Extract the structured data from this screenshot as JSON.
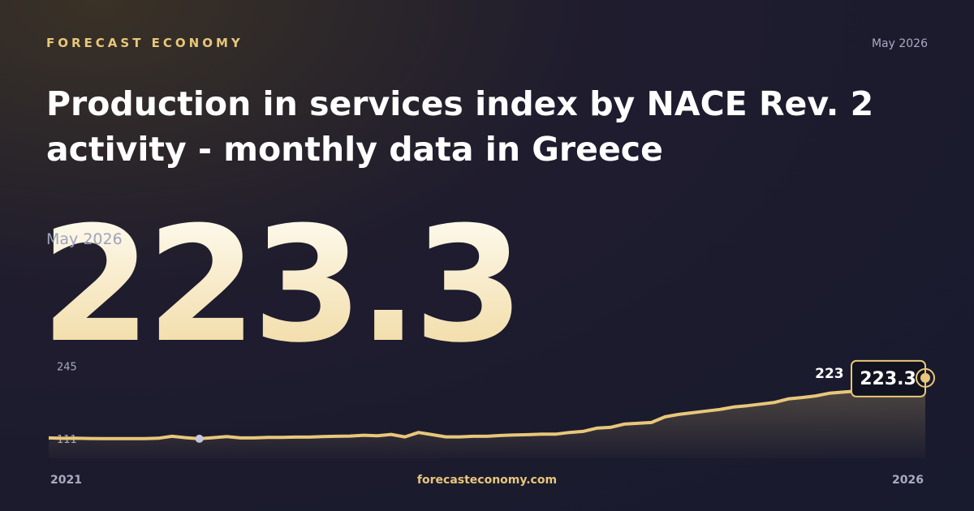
{
  "brand": "FORECAST ECONOMY",
  "date": "May 2026",
  "title": "Production in services index by NACE Rev. 2 activity - monthly data in Greece",
  "site": "forecasteconomy.com",
  "chart_data": {
    "type": "line",
    "color": "#e8c77a",
    "xlabels": [
      "2021",
      "2026"
    ],
    "ylim": [
      75,
      262
    ],
    "yticks": [
      111,
      245
    ],
    "annotation": "223",
    "values": [
      112.5,
      111.8,
      112,
      111.5,
      111.4,
      111.2,
      111.2,
      111.3,
      112,
      115.5,
      113,
      111,
      113,
      115,
      112.5,
      112.5,
      113.5,
      113.5,
      114,
      114,
      115,
      115.5,
      116,
      117.5,
      116.5,
      119,
      114.5,
      122.5,
      118.5,
      114.5,
      114.5,
      115.5,
      115.5,
      117,
      118,
      118.5,
      119.5,
      119.5,
      122.5,
      124.5,
      130.5,
      132,
      138,
      139.5,
      141,
      151.5,
      156,
      159,
      162,
      165,
      169.5,
      172,
      175,
      178,
      184.5,
      187,
      190,
      195,
      197,
      199,
      205,
      210,
      215,
      220,
      223.3
    ]
  }
}
